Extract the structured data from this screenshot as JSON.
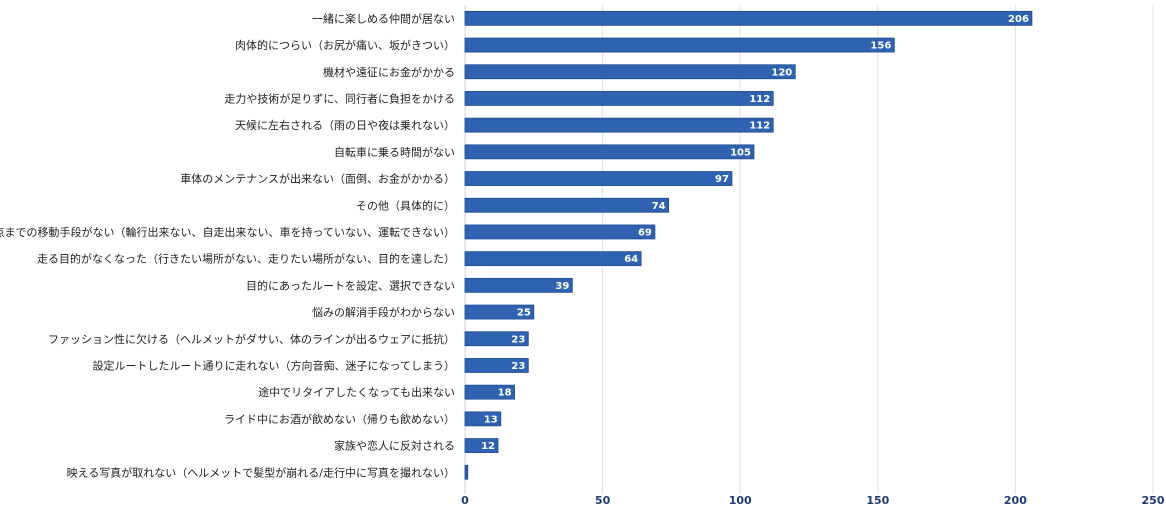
{
  "colors": {
    "bar": "#2f62b0",
    "bar_edge": "#1f4a8f",
    "grid": "#d6e3f0",
    "axis_text": "#1f3b73"
  },
  "chart_data": {
    "type": "bar",
    "orientation": "horizontal",
    "title": "",
    "xlabel": "",
    "ylabel": "",
    "xlim": [
      0,
      250
    ],
    "xticks": [
      0,
      50,
      100,
      150,
      200,
      250
    ],
    "grid": true,
    "categories": [
      "一緒に楽しめる仲間が居ない",
      "肉体的につらい（お尻が痛い、坂がきつい）",
      "機材や遠征にお金がかかる",
      "走力や技術が足りずに、同行者に負担をかける",
      "天候に左右される（雨の日や夜は乗れない）",
      "自転車に乗る時間がない",
      "車体のメンテナンスが出来ない（面倒、お金がかかる）",
      "その他（具体的に）",
      "スタート地点までの移動手段がない（輪行出来ない、自走出来ない、車を持っていない、運転できない）",
      "走る目的がなくなった（行きたい場所がない、走りたい場所がない、目的を達した）",
      "目的にあったルートを設定、選択できない",
      "悩みの解消手段がわからない",
      "ファッション性に欠ける（ヘルメットがダサい、体のラインが出るウェアに抵抗）",
      "設定ルートしたルート通りに走れない（方向音痴、迷子になってしまう）",
      "途中でリタイアしたくなっても出来ない",
      "ライド中にお酒が飲めない（帰りも飲めない）",
      "家族や恋人に反対される",
      "映える写真が取れない（ヘルメットで髪型が崩れる/走行中に写真を撮れない）"
    ],
    "values": [
      206,
      156,
      120,
      112,
      112,
      105,
      97,
      74,
      69,
      64,
      39,
      25,
      23,
      23,
      18,
      13,
      12,
      1
    ],
    "data_labels": [
      "206",
      "156",
      "120",
      "112",
      "112",
      "105",
      "97",
      "74",
      "69",
      "64",
      "39",
      "25",
      "23",
      "23",
      "18",
      "13",
      "12",
      ""
    ]
  }
}
